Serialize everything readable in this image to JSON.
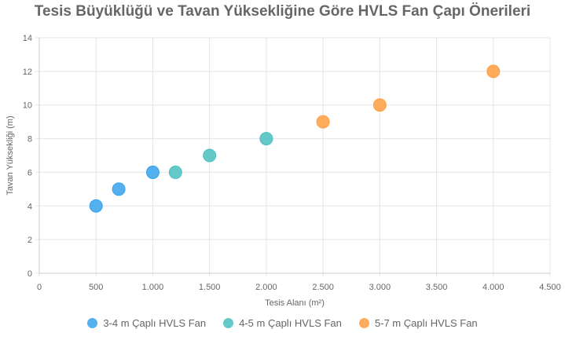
{
  "chart_data": {
    "type": "scatter",
    "title": "Tesis Büyüklüğü ve Tavan Yüksekliğine Göre HVLS Fan Çapı Önerileri",
    "xlabel": "Tesis Alanı (m²)",
    "ylabel": "Tavan Yüksekliği (m)",
    "xlim": [
      0,
      4500
    ],
    "ylim": [
      0,
      14
    ],
    "xticks": [
      0,
      500,
      1000,
      1500,
      2000,
      2500,
      3000,
      3500,
      4000,
      4500
    ],
    "xtick_labels": [
      "0",
      "500",
      "1.000",
      "1.500",
      "2.000",
      "2.500",
      "3.000",
      "3.500",
      "4.000",
      "4.500"
    ],
    "yticks": [
      0,
      2,
      4,
      6,
      8,
      10,
      12,
      14
    ],
    "ytick_labels": [
      "0",
      "2",
      "4",
      "6",
      "8",
      "10",
      "12",
      "14"
    ],
    "grid": true,
    "legend_position": "bottom",
    "series": [
      {
        "name": "3-4 m Çaplı HVLS Fan",
        "color": "#36a2eb",
        "points": [
          {
            "x": 500,
            "y": 4
          },
          {
            "x": 700,
            "y": 5
          },
          {
            "x": 1000,
            "y": 6
          }
        ]
      },
      {
        "name": "4-5 m Çaplı HVLS Fan",
        "color": "#4bc0c0",
        "points": [
          {
            "x": 1200,
            "y": 6
          },
          {
            "x": 1500,
            "y": 7
          },
          {
            "x": 2000,
            "y": 8
          }
        ]
      },
      {
        "name": "5-7 m Çaplı HVLS Fan",
        "color": "#ff9f40",
        "points": [
          {
            "x": 2500,
            "y": 9
          },
          {
            "x": 3000,
            "y": 10
          },
          {
            "x": 4000,
            "y": 12
          }
        ]
      }
    ]
  }
}
